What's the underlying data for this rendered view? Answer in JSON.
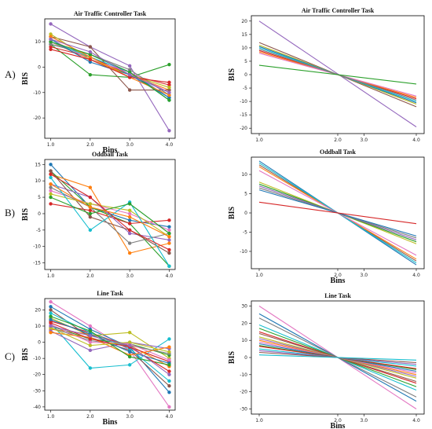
{
  "row_labels": [
    "A)",
    "B)",
    "C)"
  ],
  "chart_data": [
    {
      "type": "line",
      "title": "Air Traffic Controller Task",
      "xlabel": "Bins",
      "ylabel": "BIS",
      "xticks": [
        "1.0",
        "2.0",
        "3.0",
        "4.0"
      ],
      "yticks": [
        -20,
        -10,
        0,
        10
      ],
      "xlim": [
        0.85,
        4.15
      ],
      "ylim": [
        -28,
        19
      ],
      "markers": true,
      "series": [
        {
          "color": "#1f77b4",
          "values": [
            9,
            5,
            -2,
            -12
          ]
        },
        {
          "color": "#ff7f0e",
          "values": [
            10,
            3,
            -3,
            -9
          ]
        },
        {
          "color": "#2ca02c",
          "values": [
            9,
            -3,
            -4,
            1
          ]
        },
        {
          "color": "#d62728",
          "values": [
            8,
            4,
            -3,
            -7
          ]
        },
        {
          "color": "#9467bd",
          "values": [
            17,
            8,
            0.5,
            -25
          ]
        },
        {
          "color": "#8c564b",
          "values": [
            12,
            8,
            -9,
            -9
          ]
        },
        {
          "color": "#e377c2",
          "values": [
            11,
            3,
            -2,
            -10
          ]
        },
        {
          "color": "#7f7f7f",
          "values": [
            9,
            5,
            -1,
            -11
          ]
        },
        {
          "color": "#bcbd22",
          "values": [
            13,
            3,
            -3,
            -8
          ]
        },
        {
          "color": "#17becf",
          "values": [
            10,
            4,
            -2,
            -13
          ]
        },
        {
          "color": "#1f77b4",
          "values": [
            11,
            2,
            -3,
            -12
          ]
        },
        {
          "color": "#ff7f0e",
          "values": [
            12,
            4,
            -4,
            -11
          ]
        },
        {
          "color": "#2ca02c",
          "values": [
            10,
            5,
            -2,
            -13
          ]
        },
        {
          "color": "#d62728",
          "values": [
            7,
            3,
            -4,
            -6
          ]
        },
        {
          "color": "#9467bd",
          "values": [
            11,
            6,
            -3,
            -10
          ]
        }
      ]
    },
    {
      "type": "line",
      "title": "Air Traffic Controller Task",
      "xlabel": "",
      "ylabel": "BIS",
      "xticks": [
        "1.0",
        "2.0",
        "3.0",
        "4.0"
      ],
      "yticks": [
        -20,
        -15,
        -10,
        -5,
        0,
        5,
        10,
        15,
        20
      ],
      "xlim": [
        0.85,
        4.15
      ],
      "ylim": [
        -22,
        22
      ],
      "markers": false,
      "series": [
        {
          "color": "#9467bd",
          "values": [
            20,
            -19.5
          ]
        },
        {
          "color": "#8c564b",
          "values": [
            12,
            -12
          ]
        },
        {
          "color": "#bcbd22",
          "values": [
            11,
            -11
          ]
        },
        {
          "color": "#1f77b4",
          "values": [
            10.5,
            -10.5
          ]
        },
        {
          "color": "#17becf",
          "values": [
            10,
            -10
          ]
        },
        {
          "color": "#d62728",
          "values": [
            9,
            -9
          ]
        },
        {
          "color": "#ff7f0e",
          "values": [
            8.5,
            -8.5
          ]
        },
        {
          "color": "#e377c2",
          "values": [
            8,
            -8
          ]
        },
        {
          "color": "#7f7f7f",
          "values": [
            9.5,
            -9.5
          ]
        },
        {
          "color": "#2ca02c",
          "values": [
            3.5,
            -3.5
          ]
        }
      ]
    },
    {
      "type": "line",
      "title": "Oddball Task",
      "xlabel": "",
      "ylabel": "BIS",
      "xticks": [
        "1.0",
        "2.0",
        "3.0",
        "4.0"
      ],
      "yticks": [
        -15,
        -10,
        -5,
        0,
        5,
        10,
        15
      ],
      "xlim": [
        0.85,
        4.15
      ],
      "ylim": [
        -17,
        16.5
      ],
      "markers": true,
      "series": [
        {
          "color": "#1f77b4",
          "values": [
            15,
            2,
            -2,
            -4
          ]
        },
        {
          "color": "#ff7f0e",
          "values": [
            12,
            8,
            -12,
            -9
          ]
        },
        {
          "color": "#2ca02c",
          "values": [
            13,
            2,
            -3,
            -16
          ]
        },
        {
          "color": "#d62728",
          "values": [
            3,
            1,
            -3,
            -2
          ]
        },
        {
          "color": "#9467bd",
          "values": [
            9,
            5,
            -6,
            -8
          ]
        },
        {
          "color": "#8c564b",
          "values": [
            13,
            -1,
            -5,
            -12
          ]
        },
        {
          "color": "#e377c2",
          "values": [
            7,
            3,
            0,
            -5
          ]
        },
        {
          "color": "#7f7f7f",
          "values": [
            8,
            2,
            -9,
            -6
          ]
        },
        {
          "color": "#bcbd22",
          "values": [
            6,
            3,
            1,
            -7
          ]
        },
        {
          "color": "#17becf",
          "values": [
            11,
            -5,
            3.5,
            -16
          ]
        },
        {
          "color": "#2ca02c",
          "values": [
            5,
            0,
            3,
            -6
          ]
        },
        {
          "color": "#d62728",
          "values": [
            12,
            5,
            -5,
            -11
          ]
        },
        {
          "color": "#ff7f0e",
          "values": [
            9,
            2,
            -1,
            -7
          ]
        }
      ]
    },
    {
      "type": "line",
      "title": "Oddball Task",
      "xlabel": "Bins",
      "ylabel": "BIS",
      "xticks": [
        "1.0",
        "2.0",
        "3.0",
        "4.0"
      ],
      "yticks": [
        -10,
        -5,
        0,
        5,
        10
      ],
      "xlim": [
        0.85,
        4.15
      ],
      "ylim": [
        -14.5,
        14.5
      ],
      "markers": false,
      "series": [
        {
          "color": "#1f77b4",
          "values": [
            13.5,
            -13.5
          ]
        },
        {
          "color": "#8c564b",
          "values": [
            12.5,
            -12.5
          ]
        },
        {
          "color": "#ff7f0e",
          "values": [
            12,
            -12
          ]
        },
        {
          "color": "#17becf",
          "values": [
            13,
            -13
          ]
        },
        {
          "color": "#e377c2",
          "values": [
            11,
            -11
          ]
        },
        {
          "color": "#bcbd22",
          "values": [
            8,
            -8
          ]
        },
        {
          "color": "#2ca02c",
          "values": [
            7.5,
            -7.5
          ]
        },
        {
          "color": "#9467bd",
          "values": [
            7,
            -7
          ]
        },
        {
          "color": "#7f7f7f",
          "values": [
            6.5,
            -6.5
          ]
        },
        {
          "color": "#1f77b4",
          "values": [
            6,
            -6
          ]
        },
        {
          "color": "#d62728",
          "values": [
            2.8,
            -2.8
          ]
        }
      ]
    },
    {
      "type": "line",
      "title": "Line Task",
      "xlabel": "Bins",
      "ylabel": "BIS",
      "xticks": [
        "1.0",
        "2.0",
        "3.0",
        "4.0"
      ],
      "yticks": [
        -40,
        -30,
        -20,
        -10,
        0,
        10,
        20
      ],
      "xlim": [
        0.85,
        4.15
      ],
      "ylim": [
        -42,
        27
      ],
      "markers": true,
      "series": [
        {
          "color": "#e377c2",
          "values": [
            25,
            10,
            -5,
            -40
          ]
        },
        {
          "color": "#1f77b4",
          "values": [
            22,
            8,
            -3,
            -31
          ]
        },
        {
          "color": "#17becf",
          "values": [
            12,
            -16,
            -14,
            2
          ]
        },
        {
          "color": "#bcbd22",
          "values": [
            15,
            4,
            6,
            -10
          ]
        },
        {
          "color": "#ff7f0e",
          "values": [
            8,
            5,
            -2,
            -15
          ]
        },
        {
          "color": "#2ca02c",
          "values": [
            10,
            2,
            -1,
            -8
          ]
        },
        {
          "color": "#d62728",
          "values": [
            13,
            6,
            -3,
            -12
          ]
        },
        {
          "color": "#9467bd",
          "values": [
            7,
            -5,
            0,
            -4
          ]
        },
        {
          "color": "#8c564b",
          "values": [
            20,
            3,
            -5,
            -27
          ]
        },
        {
          "color": "#7f7f7f",
          "values": [
            9,
            1,
            -2,
            -7
          ]
        },
        {
          "color": "#17becf",
          "values": [
            18,
            6,
            -4,
            -24
          ]
        },
        {
          "color": "#e377c2",
          "values": [
            11,
            0,
            -1,
            -11
          ]
        },
        {
          "color": "#1f77b4",
          "values": [
            14,
            5,
            -6,
            -13
          ]
        },
        {
          "color": "#ff7f0e",
          "values": [
            6,
            3,
            -8,
            -3
          ]
        },
        {
          "color": "#2ca02c",
          "values": [
            16,
            7,
            -9,
            -14
          ]
        },
        {
          "color": "#d62728",
          "values": [
            12,
            2,
            -3,
            -18
          ]
        },
        {
          "color": "#bcbd22",
          "values": [
            9,
            -2,
            0,
            -6
          ]
        },
        {
          "color": "#9467bd",
          "values": [
            10,
            4,
            -2,
            -20
          ]
        }
      ]
    },
    {
      "type": "line",
      "title": "Line Task",
      "xlabel": "Bins",
      "ylabel": "BIS",
      "xticks": [
        "1.0",
        "2.0",
        "3.0",
        "4.0"
      ],
      "yticks": [
        -30,
        -20,
        -10,
        0,
        10,
        20,
        30
      ],
      "xlim": [
        0.85,
        4.15
      ],
      "ylim": [
        -33,
        33
      ],
      "markers": false,
      "series": [
        {
          "color": "#e377c2",
          "values": [
            30,
            -30
          ]
        },
        {
          "color": "#1f77b4",
          "values": [
            25.5,
            -25.5
          ]
        },
        {
          "color": "#7f7f7f",
          "values": [
            23,
            -23
          ]
        },
        {
          "color": "#17becf",
          "values": [
            19,
            -19
          ]
        },
        {
          "color": "#2ca02c",
          "values": [
            17,
            -17
          ]
        },
        {
          "color": "#d62728",
          "values": [
            15,
            -15
          ]
        },
        {
          "color": "#8c564b",
          "values": [
            14,
            -14
          ]
        },
        {
          "color": "#bcbd22",
          "values": [
            12,
            -12
          ]
        },
        {
          "color": "#9467bd",
          "values": [
            11,
            -11
          ]
        },
        {
          "color": "#ff7f0e",
          "values": [
            10,
            -10
          ]
        },
        {
          "color": "#e377c2",
          "values": [
            9,
            -9
          ]
        },
        {
          "color": "#1f77b4",
          "values": [
            8,
            -8
          ]
        },
        {
          "color": "#2ca02c",
          "values": [
            7,
            -7
          ]
        },
        {
          "color": "#d62728",
          "values": [
            6.5,
            -6.5
          ]
        },
        {
          "color": "#17becf",
          "values": [
            5,
            -5
          ]
        },
        {
          "color": "#9467bd",
          "values": [
            4,
            -4
          ]
        },
        {
          "color": "#8c564b",
          "values": [
            3,
            -3
          ]
        },
        {
          "color": "#17becf",
          "values": [
            1.5,
            -1.5
          ]
        }
      ]
    }
  ]
}
